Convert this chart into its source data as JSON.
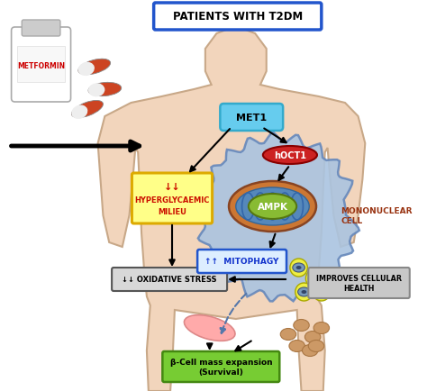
{
  "title": "PATIENTS WITH T2DM",
  "title_box_color": "#2255cc",
  "bg_color": "#ffffff",
  "body_fill": "#f2d5bc",
  "body_edge": "#c8a888",
  "met_label": "MET1",
  "met_color": "#66ccee",
  "hoct1_label": "hOCT1",
  "hoct1_color": "#cc2222",
  "ampk_label": "AMPK",
  "ampk_fill": "#88bb33",
  "ampk_edge": "#557711",
  "mitophagy_label": "↑↑  MITOPHAGY",
  "mitophagy_box_color": "#ddeeff",
  "mitophagy_text_color": "#1133cc",
  "mitophagy_edge_color": "#2255cc",
  "hyperglycaemic_line1": "↓↓",
  "hyperglycaemic_line2": "HYPERGLYCAEMIC",
  "hyperglycaemic_line3": "MILIEU",
  "hyperglycaemic_box_color": "#ffff88",
  "hyperglycaemic_edge_color": "#ddaa00",
  "hyperglycaemic_text_color": "#cc1100",
  "oxidative_label": "↓↓ OXIDATIVE STRESS",
  "oxidative_box_color": "#d8d8d8",
  "oxidative_edge_color": "#555555",
  "mononuclear_label": "MONONUCLEAR\nCELL",
  "mononuclear_text_color": "#993311",
  "improves_label": "IMPROVES CELLULAR\nHEALTH",
  "improves_box_color": "#c8c8c8",
  "improves_edge_color": "#888888",
  "beta_label": "β-Cell mass expansion\n(Survival)",
  "beta_box_color": "#77cc33",
  "beta_edge_color": "#448811",
  "beta_text_color": "#000000",
  "metformin_label": "METFORMIN",
  "metformin_text_color": "#cc0000",
  "cell_fill": "#aac4e0",
  "cell_edge": "#6688bb",
  "mito_outer_fill": "#cc7733",
  "mito_inner_fill": "#dd9955",
  "mito_cristae_color": "#5588bb",
  "vesicle_fill": "#eeee44",
  "vesicle_edge": "#aaa800",
  "islet_fill": "#cc9966",
  "islet_edge": "#aa7744",
  "pancreas_fill": "#ffaaaa",
  "pancreas_edge": "#dd8888"
}
